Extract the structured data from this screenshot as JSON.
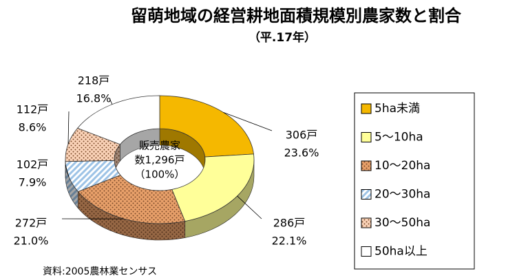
{
  "chart_data": {
    "type": "donut3d",
    "title": "留萌地域の経営耕地面積規模別農家数と割合",
    "subtitle": "（平.17年）",
    "center_label": [
      "販売農家",
      "数1,296戸",
      "（100%）"
    ],
    "source": "資料:2005農林業センサス",
    "categories": [
      "5ha未満",
      "5～10ha",
      "10～20ha",
      "20～30ha",
      "30～50ha",
      "50ha以上"
    ],
    "values": [
      306,
      286,
      272,
      102,
      112,
      218
    ],
    "value_labels": [
      "306戸",
      "286戸",
      "272戸",
      "102戸",
      "112戸",
      "218戸"
    ],
    "percentages": [
      23.6,
      22.1,
      21.0,
      7.9,
      8.6,
      16.8
    ],
    "percentage_labels": [
      "23.6%",
      "22.1%",
      "21.0%",
      "7.9%",
      "8.6%",
      "16.8%"
    ],
    "colors": [
      "#f5b800",
      "#ffff99",
      "#e8a06a",
      "#9dc3e6",
      "#fbd3b8",
      "#ffffff"
    ],
    "fills": [
      "solid",
      "solid",
      "dots",
      "stripes",
      "dots",
      "solid"
    ],
    "legend": "right"
  }
}
